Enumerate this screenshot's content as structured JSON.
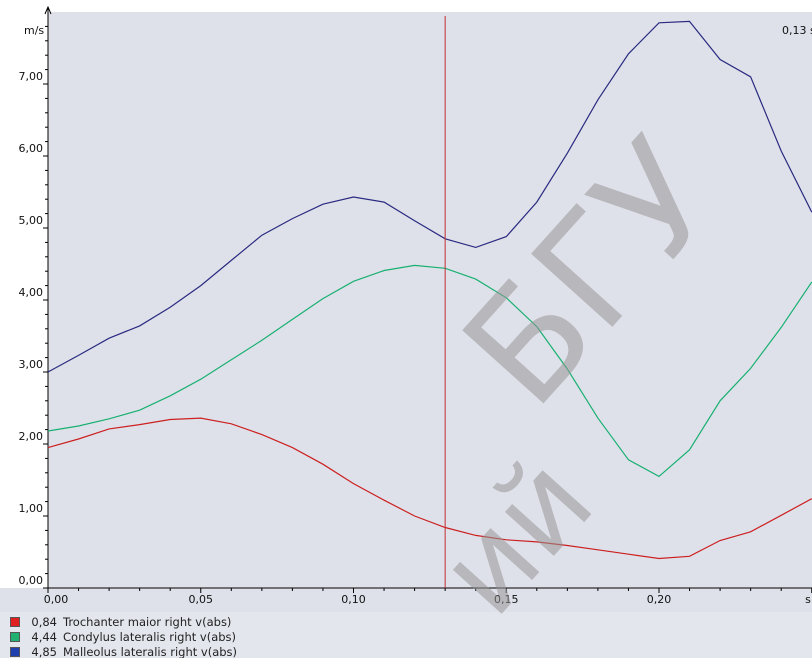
{
  "chart_data": {
    "type": "line",
    "ylabel": "m/s",
    "xlabel": "s",
    "ylim": [
      0,
      8
    ],
    "xlim": [
      0,
      0.25
    ],
    "y_ticks": [
      "0,00",
      "1,00",
      "2,00",
      "3,00",
      "4,00",
      "5,00",
      "6,00",
      "7,00"
    ],
    "x_ticks": [
      "0,00",
      "0,05",
      "0,10",
      "0,15",
      "0,20"
    ],
    "cursor": {
      "x": 0.13,
      "label": "0,13 s"
    },
    "grid": false,
    "legend_position": "bottom",
    "series": [
      {
        "name": "Trochanter maior right v(abs)",
        "cursor_value": "0,84",
        "color": "#cc2020",
        "points": [
          [
            0,
            1.95
          ],
          [
            0.01,
            2.07
          ],
          [
            0.02,
            2.21
          ],
          [
            0.03,
            2.27
          ],
          [
            0.04,
            2.34
          ],
          [
            0.05,
            2.36
          ],
          [
            0.06,
            2.28
          ],
          [
            0.07,
            2.13
          ],
          [
            0.08,
            1.95
          ],
          [
            0.09,
            1.72
          ],
          [
            0.1,
            1.45
          ],
          [
            0.11,
            1.22
          ],
          [
            0.12,
            1.0
          ],
          [
            0.13,
            0.84
          ],
          [
            0.14,
            0.73
          ],
          [
            0.15,
            0.67
          ],
          [
            0.16,
            0.64
          ],
          [
            0.17,
            0.59
          ],
          [
            0.18,
            0.53
          ],
          [
            0.19,
            0.47
          ],
          [
            0.2,
            0.41
          ],
          [
            0.21,
            0.44
          ],
          [
            0.22,
            0.66
          ],
          [
            0.23,
            0.78
          ],
          [
            0.24,
            1.01
          ],
          [
            0.25,
            1.24
          ]
        ]
      },
      {
        "name": "Condylus lateralis right v(abs)",
        "cursor_value": "4,44",
        "color": "#18b070",
        "points": [
          [
            0,
            2.18
          ],
          [
            0.01,
            2.25
          ],
          [
            0.02,
            2.35
          ],
          [
            0.03,
            2.47
          ],
          [
            0.04,
            2.67
          ],
          [
            0.05,
            2.9
          ],
          [
            0.06,
            3.17
          ],
          [
            0.07,
            3.44
          ],
          [
            0.08,
            3.73
          ],
          [
            0.09,
            4.02
          ],
          [
            0.1,
            4.26
          ],
          [
            0.11,
            4.41
          ],
          [
            0.12,
            4.48
          ],
          [
            0.13,
            4.44
          ],
          [
            0.14,
            4.29
          ],
          [
            0.15,
            4.03
          ],
          [
            0.16,
            3.63
          ],
          [
            0.17,
            3.04
          ],
          [
            0.18,
            2.36
          ],
          [
            0.19,
            1.78
          ],
          [
            0.2,
            1.55
          ],
          [
            0.21,
            1.92
          ],
          [
            0.22,
            2.6
          ],
          [
            0.23,
            3.05
          ],
          [
            0.24,
            3.62
          ],
          [
            0.25,
            4.25
          ]
        ]
      },
      {
        "name": "Malleolus lateralis right v(abs)",
        "cursor_value": "4,85",
        "color": "#2a2a80",
        "points": [
          [
            0,
            3.0
          ],
          [
            0.01,
            3.23
          ],
          [
            0.02,
            3.47
          ],
          [
            0.03,
            3.64
          ],
          [
            0.04,
            3.9
          ],
          [
            0.05,
            4.2
          ],
          [
            0.06,
            4.55
          ],
          [
            0.07,
            4.9
          ],
          [
            0.08,
            5.13
          ],
          [
            0.09,
            5.33
          ],
          [
            0.1,
            5.43
          ],
          [
            0.11,
            5.36
          ],
          [
            0.12,
            5.1
          ],
          [
            0.13,
            4.85
          ],
          [
            0.14,
            4.73
          ],
          [
            0.15,
            4.88
          ],
          [
            0.16,
            5.36
          ],
          [
            0.17,
            6.04
          ],
          [
            0.18,
            6.78
          ],
          [
            0.19,
            7.42
          ],
          [
            0.2,
            7.85
          ],
          [
            0.21,
            7.87
          ],
          [
            0.22,
            7.34
          ],
          [
            0.23,
            7.1
          ],
          [
            0.24,
            6.07
          ],
          [
            0.25,
            5.22
          ]
        ]
      }
    ]
  },
  "watermark_text": "ий БГУФ"
}
